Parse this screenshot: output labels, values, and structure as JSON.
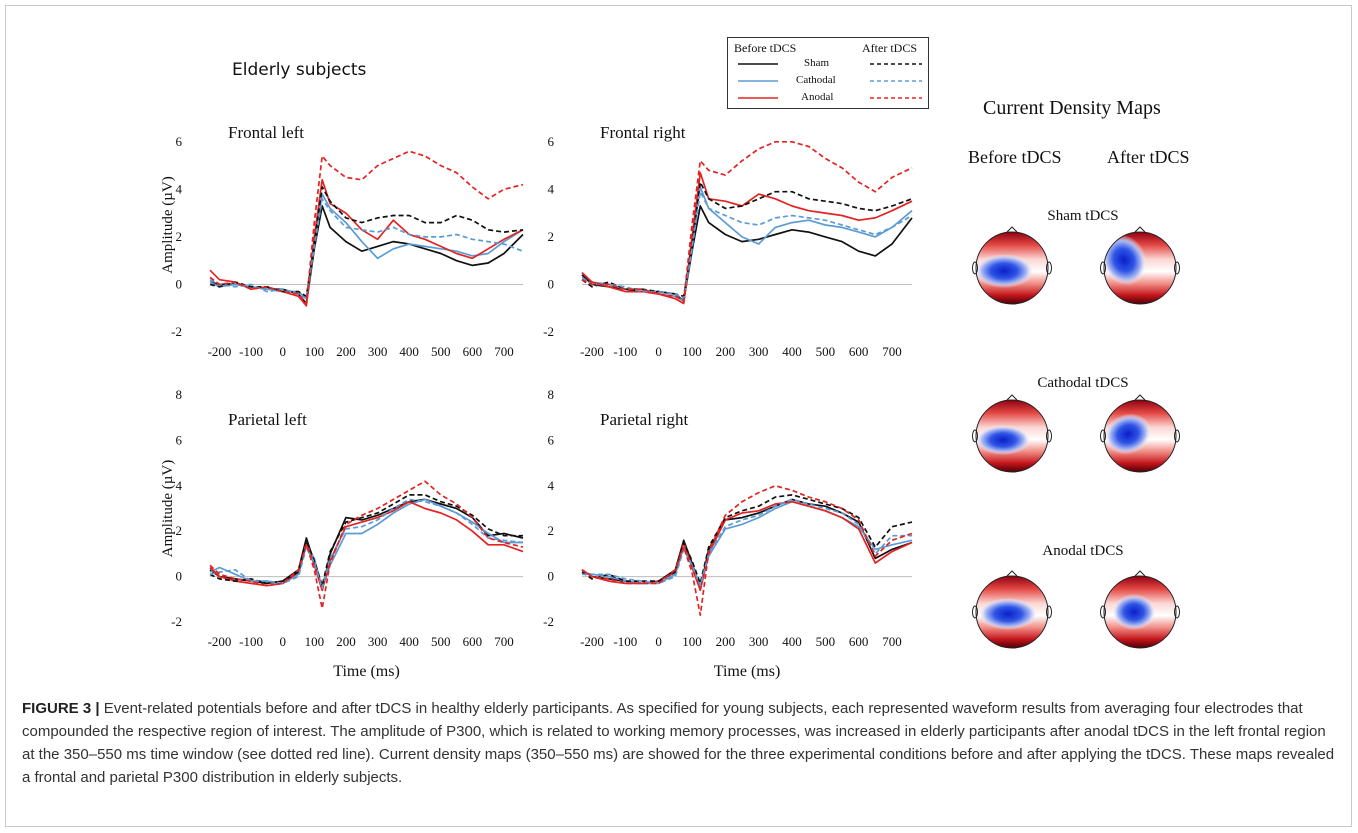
{
  "figure_title": "Elderly subjects",
  "legend": {
    "before_label": "Before tDCS",
    "after_label": "After tDCS",
    "rows": [
      {
        "name": "Sham",
        "color": "#111111"
      },
      {
        "name": "Cathodal",
        "color": "#5b9bd5"
      },
      {
        "name": "Anodal",
        "color": "#e32322"
      }
    ]
  },
  "current_density": {
    "heading": "Current Density Maps",
    "before": "Before tDCS",
    "after": "After tDCS",
    "conditions": [
      "Sham tDCS",
      "Cathodal tDCS",
      "Anodal tDCS"
    ],
    "colors": {
      "negative": "#1a2fd6",
      "positive": "#c80f12",
      "deep_positive": "#5a0007"
    }
  },
  "chart_data": [
    {
      "type": "line",
      "title": "Frontal left",
      "ylabel": "Amplitude (µV)",
      "xlabel": "",
      "xlim": [
        -230,
        760
      ],
      "ylim": [
        -2,
        7
      ],
      "yticks": [
        -2,
        0,
        2,
        4,
        6
      ],
      "xticks": [
        -200,
        -100,
        0,
        100,
        200,
        300,
        400,
        500,
        600,
        700
      ],
      "x": [
        -230,
        -200,
        -150,
        -100,
        -50,
        0,
        50,
        75,
        100,
        125,
        150,
        200,
        250,
        300,
        350,
        400,
        450,
        500,
        550,
        600,
        650,
        700,
        760
      ],
      "series": [
        {
          "name": "Sham",
          "condition": "before",
          "values": [
            0.1,
            0.0,
            0.0,
            -0.1,
            -0.2,
            -0.2,
            -0.4,
            -0.8,
            1.5,
            3.3,
            2.4,
            1.8,
            1.4,
            1.6,
            1.8,
            1.7,
            1.5,
            1.3,
            1.0,
            0.8,
            0.9,
            1.3,
            2.1
          ]
        },
        {
          "name": "Cathodal",
          "condition": "before",
          "values": [
            0.1,
            -0.1,
            0.0,
            -0.1,
            -0.2,
            -0.3,
            -0.3,
            -0.6,
            1.8,
            3.8,
            3.2,
            2.6,
            1.8,
            1.1,
            1.5,
            1.7,
            1.6,
            1.5,
            1.4,
            1.2,
            1.3,
            1.8,
            2.3
          ]
        },
        {
          "name": "Anodal",
          "condition": "before",
          "values": [
            0.6,
            0.2,
            0.1,
            -0.2,
            -0.1,
            -0.3,
            -0.5,
            -0.9,
            2.0,
            4.4,
            3.4,
            3.0,
            2.3,
            1.9,
            2.7,
            2.1,
            1.9,
            1.6,
            1.3,
            1.1,
            1.5,
            1.9,
            2.3
          ]
        },
        {
          "name": "Sham",
          "condition": "after",
          "values": [
            0.0,
            -0.1,
            0.1,
            -0.1,
            -0.1,
            -0.3,
            -0.3,
            -0.5,
            1.7,
            4.1,
            3.5,
            2.8,
            2.6,
            2.8,
            2.9,
            2.9,
            2.6,
            2.6,
            2.9,
            2.7,
            2.3,
            2.2,
            2.3
          ]
        },
        {
          "name": "Cathodal",
          "condition": "after",
          "values": [
            0.2,
            0.0,
            -0.1,
            0.0,
            -0.3,
            -0.2,
            -0.4,
            -0.6,
            1.6,
            3.6,
            3.1,
            2.4,
            2.3,
            2.2,
            2.4,
            2.1,
            2.0,
            2.0,
            2.1,
            1.9,
            1.8,
            1.7,
            1.4
          ]
        },
        {
          "name": "Anodal",
          "condition": "after",
          "values": [
            0.3,
            0.0,
            0.1,
            -0.2,
            -0.1,
            -0.3,
            -0.4,
            -0.8,
            2.6,
            5.4,
            5.0,
            4.5,
            4.4,
            5.0,
            5.3,
            5.6,
            5.4,
            5.0,
            4.7,
            4.1,
            3.6,
            4.0,
            4.2
          ]
        }
      ]
    },
    {
      "type": "line",
      "title": "Frontal right",
      "ylabel": "",
      "xlabel": "",
      "xlim": [
        -230,
        760
      ],
      "ylim": [
        -2,
        7
      ],
      "yticks": [
        -2,
        0,
        2,
        4,
        6
      ],
      "xticks": [
        -200,
        -100,
        0,
        100,
        200,
        300,
        400,
        500,
        600,
        700
      ],
      "x": [
        -230,
        -200,
        -150,
        -100,
        -50,
        0,
        50,
        75,
        100,
        125,
        150,
        200,
        250,
        300,
        350,
        400,
        450,
        500,
        550,
        600,
        650,
        700,
        760
      ],
      "series": [
        {
          "name": "Sham",
          "condition": "before",
          "values": [
            0.4,
            0.0,
            -0.1,
            -0.2,
            -0.3,
            -0.3,
            -0.4,
            -0.7,
            1.4,
            3.3,
            2.6,
            2.1,
            1.8,
            1.9,
            2.1,
            2.3,
            2.2,
            2.0,
            1.8,
            1.4,
            1.2,
            1.7,
            2.8
          ]
        },
        {
          "name": "Cathodal",
          "condition": "before",
          "values": [
            0.5,
            0.1,
            0.0,
            -0.2,
            -0.2,
            -0.4,
            -0.5,
            -0.7,
            1.7,
            4.1,
            3.2,
            2.6,
            2.0,
            1.7,
            2.4,
            2.6,
            2.7,
            2.5,
            2.4,
            2.2,
            2.0,
            2.4,
            3.1
          ]
        },
        {
          "name": "Anodal",
          "condition": "before",
          "values": [
            0.5,
            0.1,
            -0.1,
            -0.3,
            -0.3,
            -0.4,
            -0.6,
            -0.8,
            2.0,
            4.7,
            3.6,
            3.5,
            3.3,
            3.8,
            3.6,
            3.3,
            3.1,
            3.0,
            2.9,
            2.7,
            2.8,
            3.1,
            3.5
          ]
        },
        {
          "name": "Sham",
          "condition": "after",
          "values": [
            0.2,
            -0.1,
            0.1,
            -0.2,
            -0.2,
            -0.3,
            -0.4,
            -0.5,
            1.6,
            4.3,
            3.6,
            3.2,
            3.3,
            3.6,
            3.9,
            3.9,
            3.6,
            3.5,
            3.4,
            3.2,
            3.1,
            3.3,
            3.6
          ]
        },
        {
          "name": "Cathodal",
          "condition": "after",
          "values": [
            0.3,
            0.0,
            0.0,
            -0.1,
            -0.3,
            -0.3,
            -0.4,
            -0.6,
            1.5,
            3.9,
            3.2,
            2.9,
            2.6,
            2.5,
            2.8,
            2.9,
            2.8,
            2.7,
            2.5,
            2.3,
            2.1,
            2.4,
            2.9
          ]
        },
        {
          "name": "Anodal",
          "condition": "after",
          "values": [
            0.2,
            0.0,
            0.0,
            -0.2,
            -0.2,
            -0.4,
            -0.5,
            -0.7,
            2.5,
            5.2,
            4.8,
            4.6,
            5.2,
            5.7,
            6.0,
            6.0,
            5.8,
            5.3,
            4.9,
            4.3,
            3.9,
            4.5,
            4.9
          ]
        }
      ]
    },
    {
      "type": "line",
      "title": "Parietal left",
      "ylabel": "Amplitude (µV)",
      "xlabel": "Time (ms)",
      "xlim": [
        -230,
        760
      ],
      "ylim": [
        -2,
        8
      ],
      "yticks": [
        -2,
        0,
        2,
        4,
        6,
        8
      ],
      "xticks": [
        -200,
        -100,
        0,
        100,
        200,
        300,
        400,
        500,
        600,
        700
      ],
      "x": [
        -230,
        -200,
        -150,
        -100,
        -50,
        0,
        50,
        75,
        100,
        125,
        150,
        200,
        250,
        300,
        350,
        400,
        450,
        500,
        550,
        600,
        650,
        700,
        760
      ],
      "series": [
        {
          "name": "Sham",
          "condition": "before",
          "values": [
            0.3,
            0.0,
            -0.1,
            -0.2,
            -0.3,
            -0.2,
            0.3,
            1.7,
            0.6,
            -0.6,
            1.0,
            2.6,
            2.5,
            2.7,
            3.0,
            3.3,
            3.4,
            3.2,
            3.0,
            2.6,
            1.8,
            1.9,
            1.7
          ]
        },
        {
          "name": "Cathodal",
          "condition": "before",
          "values": [
            0.2,
            0.4,
            0.1,
            -0.2,
            -0.2,
            -0.3,
            0.1,
            1.4,
            0.8,
            -0.5,
            0.5,
            1.9,
            1.9,
            2.3,
            2.8,
            3.2,
            3.4,
            3.1,
            2.8,
            2.4,
            1.9,
            1.5,
            1.5
          ]
        },
        {
          "name": "Anodal",
          "condition": "before",
          "values": [
            0.4,
            0.0,
            -0.2,
            -0.3,
            -0.4,
            -0.3,
            0.2,
            1.5,
            0.5,
            -0.6,
            0.7,
            2.2,
            2.4,
            2.6,
            2.9,
            3.3,
            3.0,
            2.8,
            2.5,
            2.0,
            1.4,
            1.4,
            1.1
          ]
        },
        {
          "name": "Sham",
          "condition": "after",
          "values": [
            0.1,
            -0.1,
            -0.2,
            -0.1,
            -0.3,
            -0.2,
            0.2,
            1.6,
            0.7,
            -0.4,
            1.1,
            2.4,
            2.6,
            2.8,
            3.2,
            3.6,
            3.6,
            3.3,
            3.1,
            2.7,
            2.1,
            1.8,
            1.8
          ]
        },
        {
          "name": "Cathodal",
          "condition": "after",
          "values": [
            0.1,
            0.2,
            0.3,
            -0.2,
            -0.2,
            -0.3,
            0.0,
            1.3,
            0.6,
            -0.5,
            0.8,
            2.1,
            2.2,
            2.5,
            3.0,
            3.4,
            3.3,
            3.1,
            2.8,
            2.3,
            1.7,
            1.6,
            1.5
          ]
        },
        {
          "name": "Anodal",
          "condition": "after",
          "values": [
            0.5,
            0.1,
            -0.1,
            -0.2,
            -0.4,
            -0.3,
            0.3,
            1.4,
            0.3,
            -1.4,
            0.6,
            2.3,
            2.7,
            3.0,
            3.4,
            3.8,
            4.2,
            3.6,
            3.2,
            2.6,
            1.7,
            1.5,
            1.3
          ]
        }
      ]
    },
    {
      "type": "line",
      "title": "Parietal right",
      "ylabel": "",
      "xlabel": "Time (ms)",
      "xlim": [
        -230,
        760
      ],
      "ylim": [
        -2,
        8
      ],
      "yticks": [
        -2,
        0,
        2,
        4,
        6,
        8
      ],
      "xticks": [
        -200,
        -100,
        0,
        100,
        200,
        300,
        400,
        500,
        600,
        700
      ],
      "x": [
        -230,
        -200,
        -150,
        -100,
        -50,
        0,
        50,
        75,
        100,
        125,
        150,
        200,
        250,
        300,
        350,
        400,
        450,
        500,
        550,
        600,
        650,
        700,
        760
      ],
      "series": [
        {
          "name": "Sham",
          "condition": "before",
          "values": [
            0.3,
            0.0,
            -0.1,
            -0.2,
            -0.3,
            -0.2,
            0.3,
            1.6,
            0.6,
            -0.5,
            1.2,
            2.5,
            2.6,
            2.8,
            3.1,
            3.4,
            3.2,
            3.1,
            2.8,
            2.4,
            0.8,
            1.2,
            1.5
          ]
        },
        {
          "name": "Cathodal",
          "condition": "before",
          "values": [
            0.2,
            0.1,
            0.0,
            -0.2,
            -0.3,
            -0.3,
            0.1,
            1.3,
            0.5,
            -0.4,
            0.9,
            2.1,
            2.3,
            2.6,
            3.0,
            3.3,
            3.1,
            2.9,
            2.6,
            2.2,
            1.2,
            1.4,
            1.6
          ]
        },
        {
          "name": "Anodal",
          "condition": "before",
          "values": [
            0.3,
            0.0,
            -0.2,
            -0.3,
            -0.3,
            -0.2,
            0.2,
            1.5,
            0.4,
            -0.6,
            1.0,
            2.5,
            2.8,
            2.9,
            3.2,
            3.3,
            3.1,
            2.9,
            2.6,
            2.1,
            0.6,
            1.1,
            1.5
          ]
        },
        {
          "name": "Sham",
          "condition": "after",
          "values": [
            0.2,
            -0.1,
            0.1,
            -0.2,
            -0.2,
            -0.2,
            0.2,
            1.5,
            0.7,
            -0.3,
            1.3,
            2.6,
            2.9,
            3.1,
            3.5,
            3.6,
            3.4,
            3.2,
            3.0,
            2.6,
            1.3,
            2.2,
            2.4
          ]
        },
        {
          "name": "Cathodal",
          "condition": "after",
          "values": [
            0.1,
            0.1,
            0.1,
            -0.1,
            -0.2,
            -0.3,
            0.0,
            1.2,
            0.5,
            -0.4,
            1.0,
            2.2,
            2.5,
            2.7,
            3.1,
            3.4,
            3.2,
            3.0,
            2.8,
            2.3,
            1.0,
            1.8,
            1.8
          ]
        },
        {
          "name": "Anodal",
          "condition": "after",
          "values": [
            0.3,
            0.0,
            -0.1,
            -0.3,
            -0.3,
            -0.3,
            0.3,
            1.3,
            0.2,
            -1.7,
            1.1,
            2.7,
            3.3,
            3.7,
            4.0,
            3.8,
            3.5,
            3.3,
            3.0,
            2.5,
            0.9,
            1.6,
            1.9
          ]
        }
      ]
    }
  ],
  "caption": {
    "label": "FIGURE 3 |",
    "text": "Event-related potentials before and after tDCS in healthy elderly participants. As specified for young subjects, each represented waveform results from averaging four electrodes that compounded the respective region of interest. The amplitude of P300, which is related to working memory processes, was increased in elderly participants after anodal tDCS in the left frontal region at the 350–550 ms time window (see dotted red line). Current density maps (350–550 ms) are showed for the three experimental conditions before and after applying the tDCS. These maps revealed a frontal and parietal P300 distribution in elderly subjects."
  }
}
